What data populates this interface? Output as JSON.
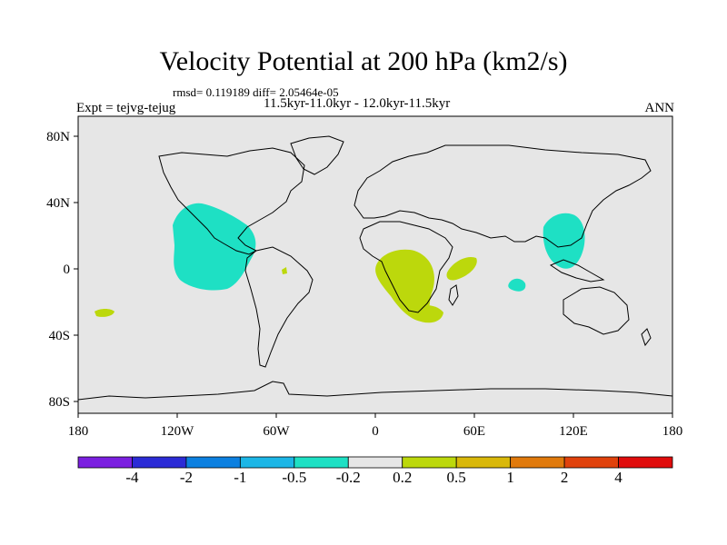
{
  "title": "Velocity Potential at 200 hPa (km2/s)",
  "stats": "rmsd= 0.119189 diff= 2.05464e-05",
  "period": "11.5kyr-11.0kyr - 12.0kyr-11.5kyr",
  "experiment": "Expt = tejvg-tejug",
  "season": "ANN",
  "axes": {
    "x_ticks": [
      "180",
      "120W",
      "60W",
      "0",
      "60E",
      "120E",
      "180"
    ],
    "y_ticks": [
      "80N",
      "40N",
      "0",
      "40S",
      "80S"
    ]
  },
  "colorbar": {
    "labels": [
      "-4",
      "-2",
      "-1",
      "-0.5",
      "-0.2",
      "0.2",
      "0.5",
      "1",
      "2",
      "4"
    ],
    "colors": [
      "#7b1fe0",
      "#2b2bd6",
      "#0c80e0",
      "#1cb6e6",
      "#1ee0c4",
      "#e6e6e6",
      "#bcd80c",
      "#d9b80a",
      "#e07a0c",
      "#e0420c",
      "#e00c0c"
    ]
  },
  "background_color": "#e6e6e6"
}
